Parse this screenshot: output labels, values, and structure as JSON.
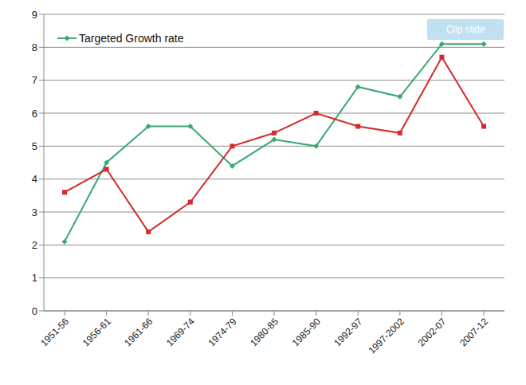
{
  "chart_data": {
    "type": "line",
    "categories": [
      "1951-56",
      "1956-61",
      "1961-66",
      "1969-74",
      "1974-79",
      "1980-85",
      "1985-90",
      "1992-97",
      "1997-2002",
      "2002-07",
      "2007-12"
    ],
    "series": [
      {
        "name": "Targeted Growth rate",
        "color": "#3aa874",
        "marker": "diamond",
        "values": [
          2.1,
          4.5,
          5.6,
          5.6,
          4.4,
          5.2,
          5.0,
          6.8,
          6.5,
          8.1,
          8.1
        ]
      },
      {
        "color": "#d42a2a",
        "marker": "square",
        "values": [
          3.6,
          4.3,
          2.4,
          3.3,
          5.0,
          5.4,
          6.0,
          5.6,
          5.4,
          7.7,
          5.6
        ]
      }
    ],
    "ylim": [
      0,
      9
    ],
    "yticks": [
      0,
      1,
      2,
      3,
      4,
      5,
      6,
      7,
      8,
      9
    ],
    "grid": true,
    "legend": "upper left",
    "annotations": [
      "Clip slide"
    ]
  }
}
